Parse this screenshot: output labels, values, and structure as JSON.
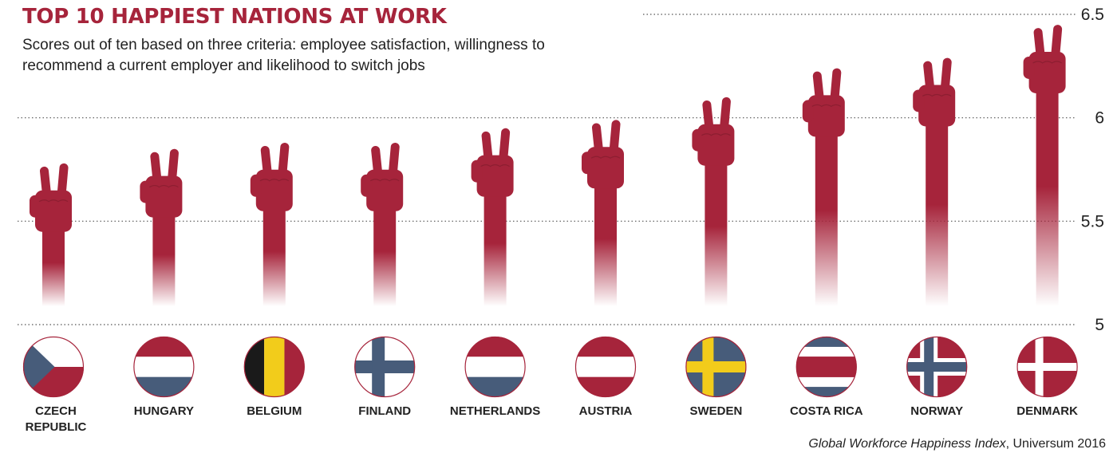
{
  "colors": {
    "accent": "#a6243b",
    "bar": "#a6243b",
    "grid": "#555555",
    "flag_red": "#a6243b",
    "flag_blue": "#475c7a",
    "flag_white": "#ffffff",
    "flag_yellow": "#f2cc1b",
    "flag_black": "#1a1a1a"
  },
  "header": {
    "title": "TOP 10 HAPPIEST NATIONS AT WORK",
    "subtitle": "Scores out of ten based on three criteria: employee satisfaction, willingness to recommend a current employer and likelihood to switch jobs"
  },
  "footer": {
    "source_italic": "Global Workforce Happiness Index",
    "source_rest": ", Universum 2016"
  },
  "chart_data": {
    "type": "bar",
    "title": "TOP 10 HAPPIEST NATIONS AT WORK",
    "xlabel": "",
    "ylabel": "",
    "ylim": [
      5,
      6.5
    ],
    "yticks": [
      "5",
      "5.5",
      "6",
      "6.5"
    ],
    "grid": true,
    "categories": [
      "Czech Republic",
      "Hungary",
      "Belgium",
      "Finland",
      "Netherlands",
      "Austria",
      "Sweden",
      "Costa Rica",
      "Norway",
      "Denmark"
    ],
    "category_labels": [
      [
        "CZECH",
        "REPUBLIC"
      ],
      [
        "HUNGARY"
      ],
      [
        "BELGIUM"
      ],
      [
        "FINLAND"
      ],
      [
        "NETHERLANDS"
      ],
      [
        "AUSTRIA"
      ],
      [
        "SWEDEN"
      ],
      [
        "COSTA RICA"
      ],
      [
        "NORWAY"
      ],
      [
        "DENMARK"
      ]
    ],
    "values": [
      5.78,
      5.85,
      5.88,
      5.88,
      5.95,
      5.99,
      6.1,
      6.24,
      6.29,
      6.45
    ],
    "flags": [
      "czech-republic",
      "hungary",
      "belgium",
      "finland",
      "netherlands",
      "austria",
      "sweden",
      "costa-rica",
      "norway",
      "denmark"
    ]
  }
}
